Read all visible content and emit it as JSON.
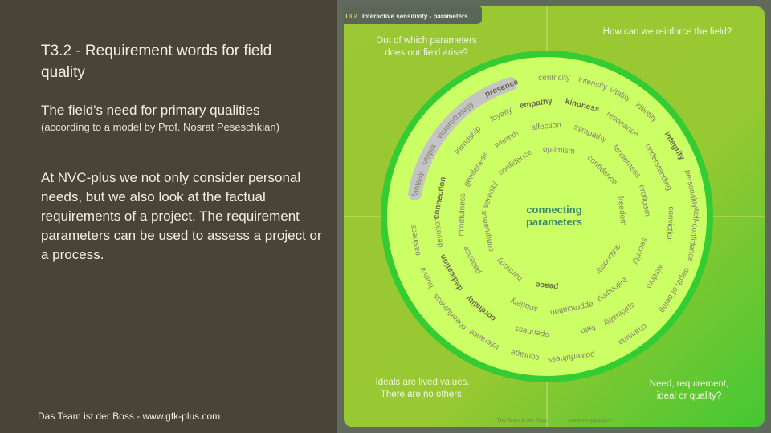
{
  "slide": {
    "title": "T3.2 -  Requirement words  for field quality",
    "subtitle": "The field's need for primary qualities",
    "subtitle_note": "(according to a model by Prof. Nosrat Peseschkian)",
    "body": "At NVC-plus we not only consider personal needs, but we also look at the factual requirements of a project. The requirement parameters can be used to assess a project or a process.",
    "footer": "Das Team ist der Boss - www.gfk-plus.com"
  },
  "diagram": {
    "tab_number": "T3.2",
    "tab_title": "Interactive sensitivity -  parameters",
    "q_top_left": [
      "Out of which parameters",
      "does our field arise?"
    ],
    "q_top_right": [
      "How can we reinforce the field?"
    ],
    "q_bottom_left": [
      "Ideals are lived values.",
      "There are no others."
    ],
    "q_bottom_right": [
      "Need, requirement,",
      "ideal or quality?"
    ],
    "center": [
      "connecting",
      "parameters"
    ],
    "footer_left": "The Team is the Boss",
    "footer_right": "www.nvc-plus.com",
    "colors": {
      "panel": "#9bc834",
      "panel_corner": "#44c833",
      "disk": "#ccff66",
      "ring": "#33cc33",
      "highlight": "#c4c4c4",
      "center_text": "#3a8a6a",
      "word": "#7a7a5a",
      "tab": "#5a6658"
    },
    "bold_words": [
      "presence",
      "empathy",
      "kindness",
      "integrity",
      "connection",
      "dedication",
      "cordiality",
      "peace"
    ],
    "highlighted_words": [
      "fantasy",
      "utopia",
      "vision",
      "strategy",
      "presence"
    ],
    "rings": [
      [
        "fantasy",
        "utopia",
        "vision",
        "strategy",
        "presence",
        "centricity",
        "intensity",
        "vitality",
        "identity",
        "integrity",
        "personality",
        "self-confidence",
        "depth of being",
        "charisma",
        "powerfulness",
        "courage",
        "tolerance",
        "cheerfulness",
        "humor",
        "easiness"
      ],
      [
        "connection",
        "friendship",
        "loyalty",
        "empathy",
        "kindness",
        "resonance",
        "understanding",
        "conviction",
        "wisdom",
        "spirituality",
        "faith",
        "openness",
        "cordiality",
        "dedication",
        "devotion"
      ],
      [
        "gentleness",
        "warmth",
        "affection",
        "sympathy",
        "tenderness",
        "eroticism",
        "security",
        "belonging",
        "appreciation",
        "sobriety",
        "patience",
        "mindfulness"
      ],
      [
        "serenity",
        "confidence",
        "optimism",
        "confidence",
        "freedom",
        "autonomy",
        "peace",
        "harmony",
        "congruence"
      ]
    ]
  }
}
